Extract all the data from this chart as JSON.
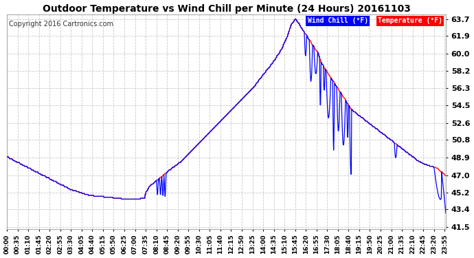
{
  "title": "Outdoor Temperature vs Wind Chill per Minute (24 Hours) 20161103",
  "copyright": "Copyright 2016 Cartronics.com",
  "yticks": [
    41.5,
    43.4,
    45.2,
    47.0,
    48.9,
    50.8,
    52.6,
    54.5,
    56.3,
    58.2,
    60.0,
    61.9,
    63.7
  ],
  "ymin": 41.5,
  "ymax": 63.7,
  "xmin": 0,
  "xmax": 1439,
  "temp_color": "#ff0000",
  "wc_color": "#0000ff",
  "bg_color": "#ffffff",
  "grid_color": "#c8c8c8",
  "legend_wc_bg": "#0000ff",
  "legend_temp_bg": "#ff0000",
  "legend_wc_text": "Wind Chill (°F)",
  "legend_temp_text": "Temperature (°F)"
}
